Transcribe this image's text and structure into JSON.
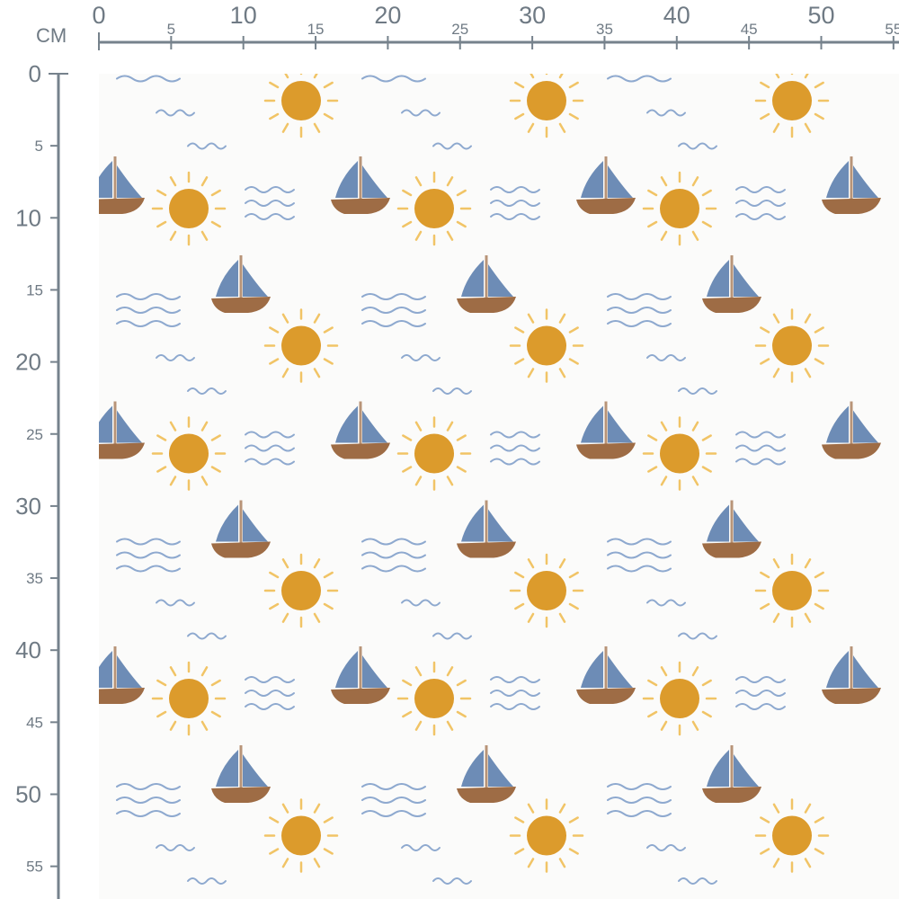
{
  "ruler": {
    "unit": "CM",
    "top_labels": [
      "0",
      "5",
      "10",
      "15",
      "20",
      "25",
      "30",
      "35",
      "40",
      "45",
      "50",
      "55"
    ],
    "left_labels": [
      "0",
      "5",
      "10",
      "15",
      "20",
      "25",
      "30",
      "35",
      "40",
      "45",
      "50",
      "55"
    ],
    "color": "#76828c"
  },
  "fabric": {
    "background": "#fbfbfa",
    "motifs": [
      "sun-icon",
      "sailboat-icon",
      "waves-icon"
    ],
    "colors": {
      "sun": "#dc9b2c",
      "rays": "#f1c466",
      "sail": "#6d8cb6",
      "hull": "#9e6c45",
      "mast": "#b89478",
      "waves": "#8ea9cf"
    }
  }
}
